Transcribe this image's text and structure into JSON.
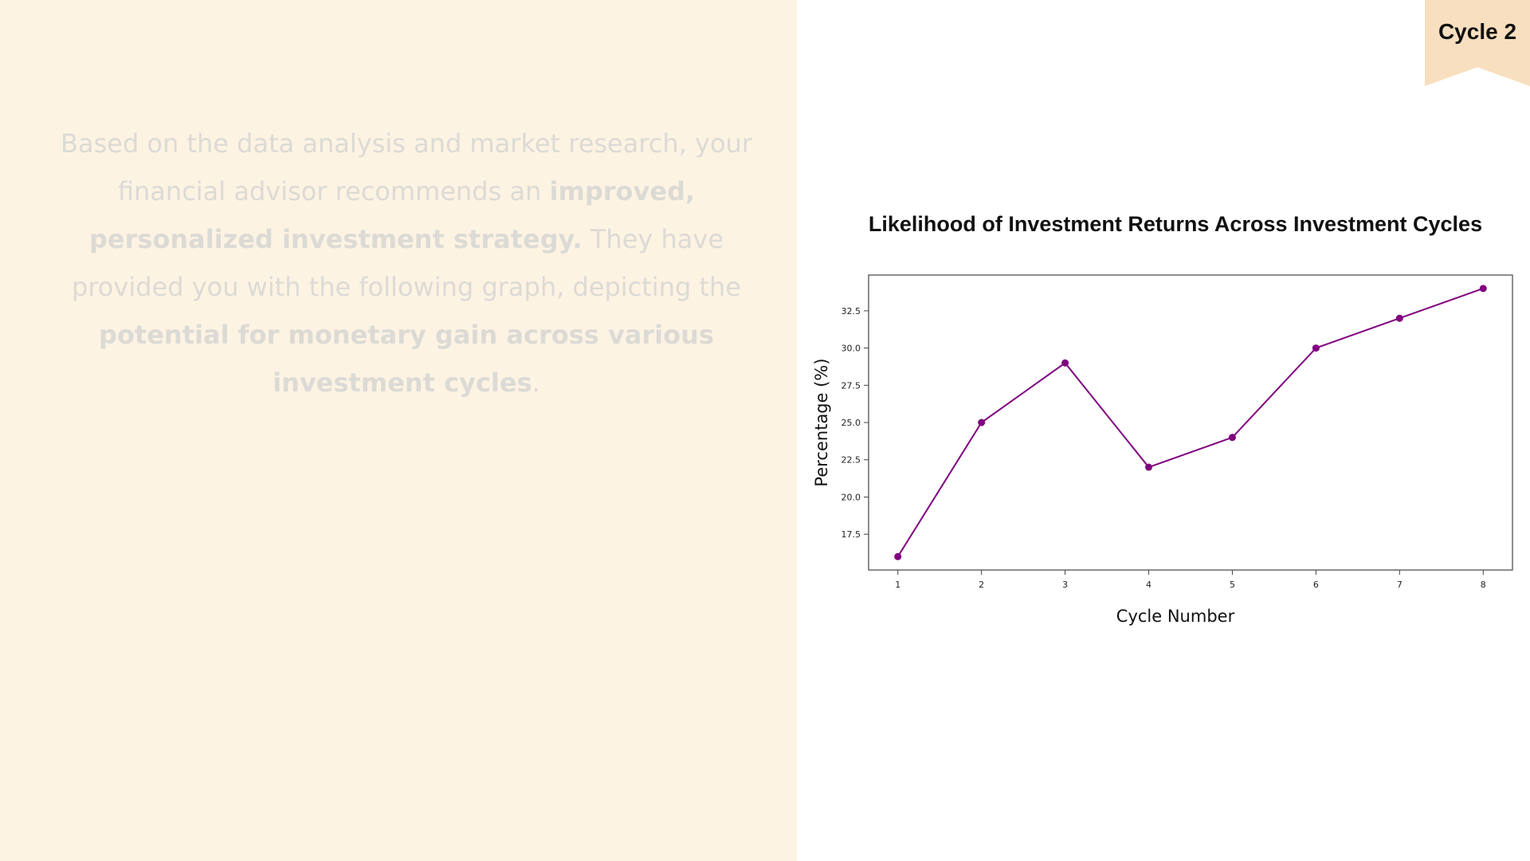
{
  "badge": {
    "label": "Cycle 2"
  },
  "paragraph": {
    "t1": "Based on the data analysis and market research, your financial advisor recommends an ",
    "b1": "improved, personalized investment strategy.",
    "t2": " They have provided you with the following graph, depicting the ",
    "b2": "potential for monetary gain across various investment cycles",
    "t3": "."
  },
  "colors": {
    "left_bg": "#fdf3e3",
    "badge_bg": "#f8dfbf",
    "line": "#800080"
  },
  "chart_data": {
    "type": "line",
    "title": "Likelihood of Investment Returns Across Investment Cycles",
    "xlabel": "Cycle Number",
    "ylabel": "Percentage (%)",
    "x": [
      1,
      2,
      3,
      4,
      5,
      6,
      7,
      8
    ],
    "series": [
      {
        "values": [
          16,
          25,
          29,
          22,
          24,
          30,
          32,
          34
        ]
      }
    ],
    "xticks": [
      "1",
      "2",
      "3",
      "4",
      "5",
      "6",
      "7",
      "8"
    ],
    "yticks": [
      "17.5",
      "20.0",
      "22.5",
      "25.0",
      "27.5",
      "30.0",
      "32.5"
    ],
    "ylim": [
      15.1,
      34.9
    ],
    "xlim": [
      0.65,
      8.35
    ],
    "grid": false
  }
}
